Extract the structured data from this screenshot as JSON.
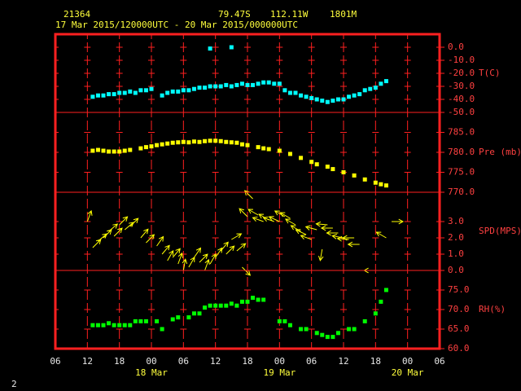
{
  "header": {
    "station": "21364",
    "lat": "79.47S",
    "lon": "112.11W",
    "elevation": "1801M",
    "period": "17 Mar 2015/120000UTC - 20 Mar 2015/000000UTC"
  },
  "footer": "2",
  "x_axis": {
    "xlim": [
      6,
      78
    ],
    "xticks": [
      {
        "value": 6,
        "label": "06"
      },
      {
        "value": 12,
        "label": "12"
      },
      {
        "value": 18,
        "label": "18"
      },
      {
        "value": 24,
        "label": "00"
      },
      {
        "value": 30,
        "label": "06"
      },
      {
        "value": 36,
        "label": "12"
      },
      {
        "value": 42,
        "label": "18"
      },
      {
        "value": 48,
        "label": "00"
      },
      {
        "value": 54,
        "label": "06"
      },
      {
        "value": 60,
        "label": "12"
      },
      {
        "value": 66,
        "label": "18"
      },
      {
        "value": 72,
        "label": "00"
      },
      {
        "value": 78,
        "label": "06"
      }
    ],
    "date_labels": [
      {
        "value": 24,
        "label": "18 Mar"
      },
      {
        "value": 48,
        "label": "19 Mar"
      },
      {
        "value": 72,
        "label": "20 Mar"
      }
    ]
  },
  "chart_data": [
    {
      "type": "scatter",
      "ylabel": "T(C)",
      "color": "#00ffff",
      "ylim": [
        -50,
        10
      ],
      "yticks": [
        {
          "value": 0,
          "label": "0.0"
        },
        {
          "value": -10,
          "label": "-10.0"
        },
        {
          "value": -20,
          "label": "-20.0"
        },
        {
          "value": -30,
          "label": "-30.0"
        },
        {
          "value": -40,
          "label": "-40.0"
        },
        {
          "value": -50,
          "label": "-50.0"
        }
      ],
      "x": [
        13,
        14,
        15,
        16,
        17,
        18,
        19,
        20,
        21,
        22,
        23,
        24,
        26,
        27,
        28,
        29,
        30,
        31,
        32,
        33,
        34,
        35,
        35,
        36,
        37,
        38,
        39,
        39,
        40,
        41,
        42,
        43,
        44,
        45,
        46,
        47,
        48,
        49,
        50,
        51,
        52,
        53,
        54,
        55,
        56,
        57,
        58,
        59,
        60,
        61,
        62,
        63,
        64,
        65,
        66,
        67,
        68
      ],
      "values": [
        -38,
        -37,
        -37,
        -36,
        -36,
        -35,
        -35,
        -34,
        -35,
        -33,
        -33,
        -32,
        -37,
        -35,
        -34,
        -34,
        -33,
        -33,
        -32,
        -31,
        -31,
        -30,
        -1,
        -30,
        -30,
        -29,
        -30,
        0,
        -29,
        -28,
        -29,
        -29,
        -28,
        -27,
        -27,
        -28,
        -28,
        -33,
        -35,
        -35,
        -37,
        -38,
        -39,
        -40,
        -41,
        -42,
        -41,
        -40,
        -40,
        -38,
        -37,
        -36,
        -33,
        -32,
        -31,
        -28,
        -26
      ]
    },
    {
      "type": "scatter",
      "ylabel": "Pre (mb)",
      "color": "#ffff00",
      "ylim": [
        770,
        790
      ],
      "yticks": [
        {
          "value": 785,
          "label": "785.0"
        },
        {
          "value": 780,
          "label": "780.0"
        },
        {
          "value": 775,
          "label": "775.0"
        },
        {
          "value": 770,
          "label": "770.0"
        }
      ],
      "x": [
        13,
        14,
        15,
        16,
        17,
        18,
        19,
        20,
        22,
        23,
        24,
        25,
        26,
        27,
        28,
        29,
        30,
        31,
        32,
        33,
        34,
        35,
        36,
        37,
        38,
        39,
        40,
        41,
        42,
        44,
        45,
        46,
        48,
        50,
        52,
        54,
        55,
        57,
        58,
        60,
        62,
        64,
        66,
        67,
        68
      ],
      "values": [
        780.4,
        780.6,
        780.4,
        780.2,
        780.2,
        780.2,
        780.4,
        780.6,
        781,
        781.3,
        781.5,
        781.8,
        782,
        782.2,
        782.4,
        782.5,
        782.6,
        782.5,
        782.7,
        782.6,
        782.8,
        782.9,
        782.9,
        782.8,
        782.6,
        782.5,
        782.4,
        782,
        781.8,
        781.3,
        781,
        780.8,
        780.4,
        779.6,
        778.6,
        777.6,
        777,
        776.4,
        775.8,
        775,
        774.2,
        773.2,
        772.4,
        772,
        771.7
      ]
    },
    {
      "type": "wind",
      "ylabel": "SPD(MPS)",
      "color": "#ffff00",
      "ylim": [
        0,
        4.8
      ],
      "yticks": [
        {
          "value": 3,
          "label": "3.0"
        },
        {
          "value": 2,
          "label": "2.0"
        },
        {
          "value": 1,
          "label": "1.0"
        },
        {
          "value": 0,
          "label": "0.0"
        }
      ],
      "x": [
        12,
        13,
        14,
        15,
        16,
        17,
        18,
        19,
        20,
        22,
        23,
        25,
        26,
        27,
        28,
        29,
        30,
        31,
        32,
        33,
        34,
        35,
        36,
        37,
        38,
        39,
        40,
        41,
        42,
        43,
        44,
        45,
        46,
        47,
        48,
        49,
        50,
        51,
        52,
        53,
        54,
        55,
        56,
        57,
        58,
        59,
        60,
        61,
        62,
        63,
        66,
        68,
        69
      ],
      "values": [
        3.0,
        1.4,
        1.8,
        2.0,
        2.4,
        2.1,
        2.8,
        2.5,
        2.7,
        2.0,
        1.7,
        1.5,
        1.0,
        0.6,
        0.8,
        0.4,
        0.0,
        0.2,
        0.8,
        0.5,
        0.0,
        0.4,
        0.8,
        1.2,
        1.0,
        1.9,
        1.2,
        0.2,
        3.3,
        4.4,
        3.4,
        3.0,
        3.1,
        3.0,
        3.0,
        3.3,
        3.2,
        2.8,
        2.4,
        2.2,
        1.9,
        2.5,
        1.3,
        2.8,
        2.6,
        2.3,
        2.0,
        1.9,
        2.0,
        1.6,
        0.0,
        2.0,
        3.0
      ],
      "angles": [
        20,
        45,
        50,
        45,
        50,
        45,
        45,
        50,
        45,
        40,
        45,
        35,
        40,
        30,
        40,
        20,
        10,
        30,
        35,
        45,
        20,
        30,
        35,
        40,
        45,
        60,
        50,
        135,
        315,
        315,
        300,
        290,
        300,
        290,
        295,
        300,
        300,
        300,
        300,
        295,
        290,
        285,
        190,
        275,
        270,
        270,
        280,
        275,
        270,
        270,
        270,
        300,
        90
      ]
    },
    {
      "type": "scatter",
      "ylabel": "RH(%)",
      "color": "#00ff00",
      "ylim": [
        60,
        80
      ],
      "yticks": [
        {
          "value": 75,
          "label": "75.0"
        },
        {
          "value": 70,
          "label": "70.0"
        },
        {
          "value": 65,
          "label": "65.0"
        },
        {
          "value": 60,
          "label": "60.0"
        }
      ],
      "x": [
        13,
        14,
        15,
        16,
        17,
        18,
        19,
        20,
        21,
        22,
        23,
        25,
        26,
        28,
        29,
        31,
        32,
        33,
        34,
        35,
        36,
        37,
        38,
        39,
        40,
        41,
        42,
        43,
        44,
        45,
        48,
        49,
        50,
        52,
        53,
        55,
        56,
        57,
        58,
        59,
        61,
        62,
        64,
        66,
        67,
        68
      ],
      "values": [
        66,
        66,
        66,
        66.5,
        66,
        66,
        66,
        66,
        67,
        67,
        67,
        67,
        65,
        67.5,
        68,
        68,
        69,
        69,
        70.5,
        71,
        71,
        71,
        71,
        71.5,
        71,
        72,
        72,
        73,
        72.5,
        72.5,
        67,
        67,
        66,
        65,
        65,
        64,
        63.5,
        63,
        63,
        64,
        65,
        65,
        67,
        69,
        72,
        75
      ]
    }
  ]
}
